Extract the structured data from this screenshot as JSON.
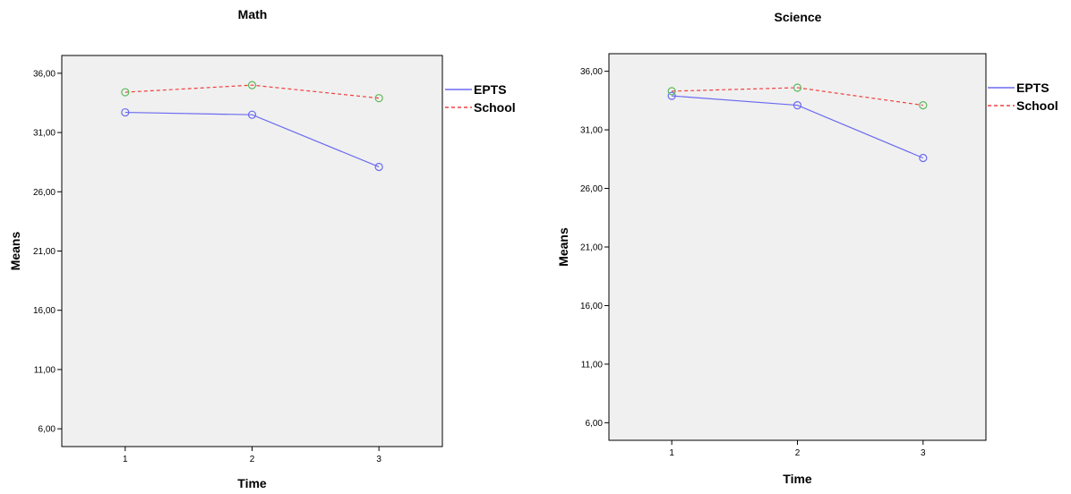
{
  "chart_data": [
    {
      "type": "line",
      "title": "Math",
      "xlabel": "Time",
      "ylabel": "Means",
      "categories": [
        "1",
        "2",
        "3"
      ],
      "yticks": [
        "6,00",
        "11,00",
        "16,00",
        "21,00",
        "26,00",
        "31,00",
        "36,00"
      ],
      "ylim": [
        4.5,
        37.5
      ],
      "grid": false,
      "legend_position": "right-top",
      "plot_background": "#f0f0f0",
      "series": [
        {
          "name": "EPTS",
          "values": [
            32.7,
            32.5,
            28.1
          ],
          "color": "#6b6bf0",
          "marker_color": "#6b6bf0",
          "dash": "solid"
        },
        {
          "name": "School",
          "values": [
            34.4,
            35.0,
            33.9
          ],
          "color": "#f04040",
          "marker_color": "#5cb85c",
          "dash": "dashed"
        }
      ]
    },
    {
      "type": "line",
      "title": "Science",
      "xlabel": "Time",
      "ylabel": "Means",
      "categories": [
        "1",
        "2",
        "3"
      ],
      "yticks": [
        "6,00",
        "11,00",
        "16,00",
        "21,00",
        "26,00",
        "31,00",
        "36,00"
      ],
      "ylim": [
        4.5,
        37.5
      ],
      "grid": false,
      "legend_position": "right-top",
      "plot_background": "#f0f0f0",
      "series": [
        {
          "name": "EPTS",
          "values": [
            33.9,
            33.1,
            28.6
          ],
          "color": "#6b6bf0",
          "marker_color": "#6b6bf0",
          "dash": "solid"
        },
        {
          "name": "School",
          "values": [
            34.3,
            34.6,
            33.1
          ],
          "color": "#f04040",
          "marker_color": "#5cb85c",
          "dash": "dashed"
        }
      ]
    }
  ]
}
